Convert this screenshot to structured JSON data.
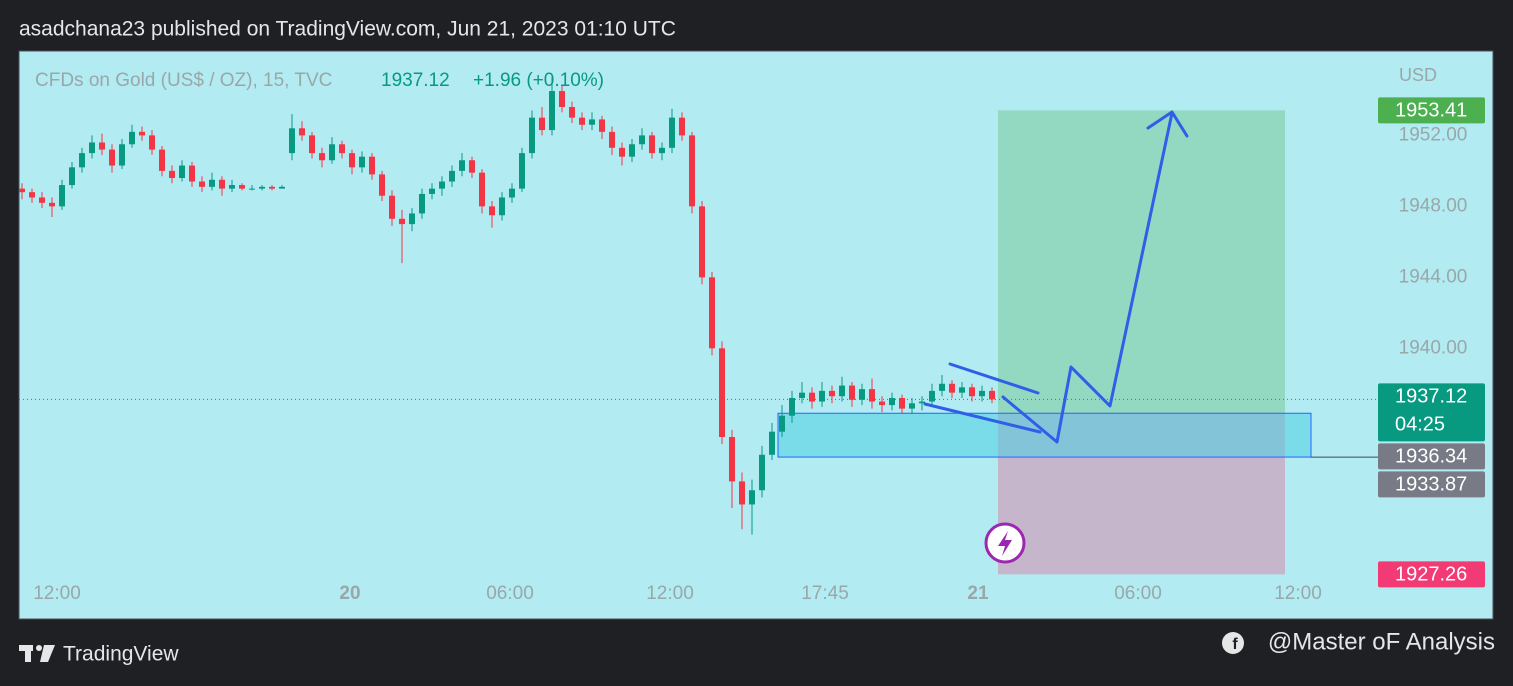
{
  "header": {
    "text": "asadchana23 published on TradingView.com, Jun 21, 2023 01:10 UTC"
  },
  "footer": {
    "brand": "TradingView",
    "credit": "@Master oF Analysis"
  },
  "chart_data": {
    "type": "candlestick",
    "symbol": "CFDs on Gold (US$ / OZ), 15, TVC",
    "last_price": 1937.12,
    "change": "+1.96 (+0.10%)",
    "currency": "USD",
    "up_color": "#089981",
    "down_color": "#f23645",
    "ylim": [
      1924.8,
      1956.7
    ],
    "yticks": [
      {
        "value": 1952,
        "label": "1952.00"
      },
      {
        "value": 1948,
        "label": "1948.00"
      },
      {
        "value": 1944,
        "label": "1944.00"
      },
      {
        "value": 1940,
        "label": "1940.00"
      }
    ],
    "xlim": [
      -0.3,
      147.1
    ],
    "xticks": [
      {
        "value": 3.5,
        "label": "12:00"
      },
      {
        "value": 32.8,
        "label": "20"
      },
      {
        "value": 48.8,
        "label": "06:00"
      },
      {
        "value": 64.8,
        "label": "12:00"
      },
      {
        "value": 80.3,
        "label": "17:45"
      },
      {
        "value": 95.6,
        "label": "21"
      },
      {
        "value": 111.6,
        "label": "06:00"
      },
      {
        "value": 127.6,
        "label": "12:00"
      }
    ],
    "price_markers": [
      {
        "price": 1953.41,
        "color": "#4caf50"
      },
      {
        "price": 1937.12,
        "countdown": "04:25",
        "color": "#089981"
      },
      {
        "price": 1936.34,
        "color": "#787b86"
      },
      {
        "price": 1933.87,
        "color": "#787b86"
      },
      {
        "price": 1927.26,
        "color": "#f23b75"
      }
    ],
    "ohlc": [
      [
        1949.0,
        1949.3,
        1948.4,
        1948.8
      ],
      [
        1948.8,
        1949.0,
        1948.2,
        1948.5
      ],
      [
        1948.5,
        1948.8,
        1947.9,
        1948.2
      ],
      [
        1948.2,
        1948.5,
        1947.4,
        1948.0
      ],
      [
        1948.0,
        1949.5,
        1947.8,
        1949.2
      ],
      [
        1949.2,
        1950.5,
        1949.0,
        1950.2
      ],
      [
        1950.2,
        1951.3,
        1949.9,
        1951.0
      ],
      [
        1951.0,
        1952.0,
        1950.7,
        1951.6
      ],
      [
        1951.6,
        1952.1,
        1950.9,
        1951.2
      ],
      [
        1951.2,
        1951.5,
        1949.9,
        1950.3
      ],
      [
        1950.3,
        1951.8,
        1950.1,
        1951.5
      ],
      [
        1951.5,
        1952.6,
        1951.3,
        1952.2
      ],
      [
        1952.2,
        1952.5,
        1951.7,
        1952.0
      ],
      [
        1952.0,
        1952.3,
        1950.9,
        1951.2
      ],
      [
        1951.2,
        1951.4,
        1949.7,
        1950.0
      ],
      [
        1950.0,
        1950.3,
        1949.3,
        1949.6
      ],
      [
        1949.6,
        1950.6,
        1949.4,
        1950.3
      ],
      [
        1950.3,
        1950.5,
        1949.1,
        1949.4
      ],
      [
        1949.4,
        1949.7,
        1948.8,
        1949.1
      ],
      [
        1949.1,
        1949.9,
        1948.9,
        1949.5
      ],
      [
        1949.5,
        1949.7,
        1948.6,
        1949.0
      ],
      [
        1949.0,
        1949.5,
        1948.8,
        1949.2
      ],
      [
        1949.2,
        1949.3,
        1948.9,
        1949.0
      ],
      [
        1949.0,
        1949.2,
        1948.9,
        1949.0
      ],
      [
        1949.0,
        1949.2,
        1948.9,
        1949.1
      ],
      [
        1949.1,
        1949.2,
        1948.9,
        1949.0
      ],
      [
        1949.0,
        1949.2,
        1949.0,
        1949.1
      ],
      [
        1951.0,
        1953.2,
        1950.6,
        1952.4
      ],
      [
        1952.4,
        1952.8,
        1951.7,
        1952.0
      ],
      [
        1952.0,
        1952.2,
        1950.7,
        1951.0
      ],
      [
        1951.0,
        1951.3,
        1950.2,
        1950.6
      ],
      [
        1950.6,
        1951.9,
        1950.4,
        1951.5
      ],
      [
        1951.5,
        1951.7,
        1950.7,
        1951.0
      ],
      [
        1951.0,
        1951.2,
        1949.8,
        1950.2
      ],
      [
        1950.2,
        1951.1,
        1949.9,
        1950.8
      ],
      [
        1950.8,
        1951.0,
        1949.5,
        1949.8
      ],
      [
        1949.8,
        1950.0,
        1948.3,
        1948.6
      ],
      [
        1948.6,
        1948.9,
        1946.9,
        1947.3
      ],
      [
        1947.3,
        1947.8,
        1944.8,
        1947.0
      ],
      [
        1947.0,
        1947.9,
        1946.6,
        1947.6
      ],
      [
        1947.6,
        1949.0,
        1947.3,
        1948.7
      ],
      [
        1948.7,
        1949.3,
        1948.4,
        1949.0
      ],
      [
        1949.0,
        1949.7,
        1948.6,
        1949.4
      ],
      [
        1949.4,
        1950.3,
        1949.1,
        1950.0
      ],
      [
        1950.0,
        1951.0,
        1949.7,
        1950.6
      ],
      [
        1950.6,
        1950.8,
        1949.6,
        1949.9
      ],
      [
        1949.9,
        1950.1,
        1947.6,
        1948.0
      ],
      [
        1948.0,
        1948.3,
        1946.8,
        1947.5
      ],
      [
        1947.5,
        1948.8,
        1947.2,
        1948.5
      ],
      [
        1948.5,
        1949.3,
        1948.2,
        1949.0
      ],
      [
        1949.0,
        1951.3,
        1948.8,
        1951.0
      ],
      [
        1951.0,
        1953.4,
        1950.7,
        1953.0
      ],
      [
        1953.0,
        1953.6,
        1952.0,
        1952.3
      ],
      [
        1952.3,
        1955.3,
        1952.0,
        1954.5
      ],
      [
        1954.5,
        1954.8,
        1953.3,
        1953.6
      ],
      [
        1953.6,
        1953.9,
        1952.7,
        1953.0
      ],
      [
        1953.0,
        1953.3,
        1952.3,
        1952.6
      ],
      [
        1952.6,
        1953.3,
        1952.3,
        1952.9
      ],
      [
        1952.9,
        1953.1,
        1951.8,
        1952.2
      ],
      [
        1952.2,
        1952.5,
        1950.9,
        1951.3
      ],
      [
        1951.3,
        1951.6,
        1950.3,
        1950.8
      ],
      [
        1950.8,
        1951.8,
        1950.5,
        1951.5
      ],
      [
        1951.5,
        1952.4,
        1951.2,
        1952.0
      ],
      [
        1952.0,
        1952.2,
        1950.7,
        1951.0
      ],
      [
        1951.0,
        1951.6,
        1950.6,
        1951.3
      ],
      [
        1951.3,
        1953.5,
        1951.0,
        1953.0
      ],
      [
        1953.0,
        1953.3,
        1951.7,
        1952.0
      ],
      [
        1952.0,
        1952.2,
        1947.6,
        1948.0
      ],
      [
        1948.0,
        1948.3,
        1943.6,
        1944.0
      ],
      [
        1944.0,
        1944.3,
        1939.6,
        1940.0
      ],
      [
        1940.0,
        1940.4,
        1934.6,
        1935.0
      ],
      [
        1935.0,
        1935.4,
        1931.0,
        1932.5
      ],
      [
        1932.5,
        1933.0,
        1929.8,
        1931.2
      ],
      [
        1931.2,
        1932.6,
        1929.5,
        1932.0
      ],
      [
        1932.0,
        1934.5,
        1931.6,
        1934.0
      ],
      [
        1934.0,
        1935.8,
        1933.7,
        1935.3
      ],
      [
        1935.3,
        1936.8,
        1935.0,
        1936.2
      ],
      [
        1936.2,
        1937.6,
        1935.8,
        1937.2
      ],
      [
        1937.2,
        1938.1,
        1936.9,
        1937.5
      ],
      [
        1937.5,
        1937.8,
        1936.6,
        1937.0
      ],
      [
        1937.0,
        1938.1,
        1936.7,
        1937.6
      ],
      [
        1937.6,
        1937.9,
        1936.9,
        1937.3
      ],
      [
        1937.3,
        1938.4,
        1937.0,
        1937.9
      ],
      [
        1937.9,
        1938.1,
        1936.7,
        1937.1
      ],
      [
        1937.1,
        1938.0,
        1936.8,
        1937.7
      ],
      [
        1937.7,
        1938.3,
        1936.6,
        1937.0
      ],
      [
        1937.0,
        1937.3,
        1936.4,
        1936.8
      ],
      [
        1936.8,
        1937.5,
        1936.5,
        1937.2
      ],
      [
        1937.2,
        1937.4,
        1936.3,
        1936.6
      ],
      [
        1936.6,
        1937.2,
        1936.3,
        1936.9
      ],
      [
        1936.9,
        1937.3,
        1936.5,
        1937.0
      ],
      [
        1937.0,
        1938.0,
        1936.8,
        1937.6
      ],
      [
        1937.6,
        1938.5,
        1937.3,
        1938.0
      ],
      [
        1938.0,
        1938.2,
        1937.2,
        1937.5
      ],
      [
        1937.5,
        1938.1,
        1937.2,
        1937.8
      ],
      [
        1937.8,
        1938.0,
        1937.0,
        1937.3
      ],
      [
        1937.3,
        1937.9,
        1937.0,
        1937.6
      ],
      [
        1937.6,
        1937.8,
        1936.9,
        1937.12
      ]
    ]
  }
}
